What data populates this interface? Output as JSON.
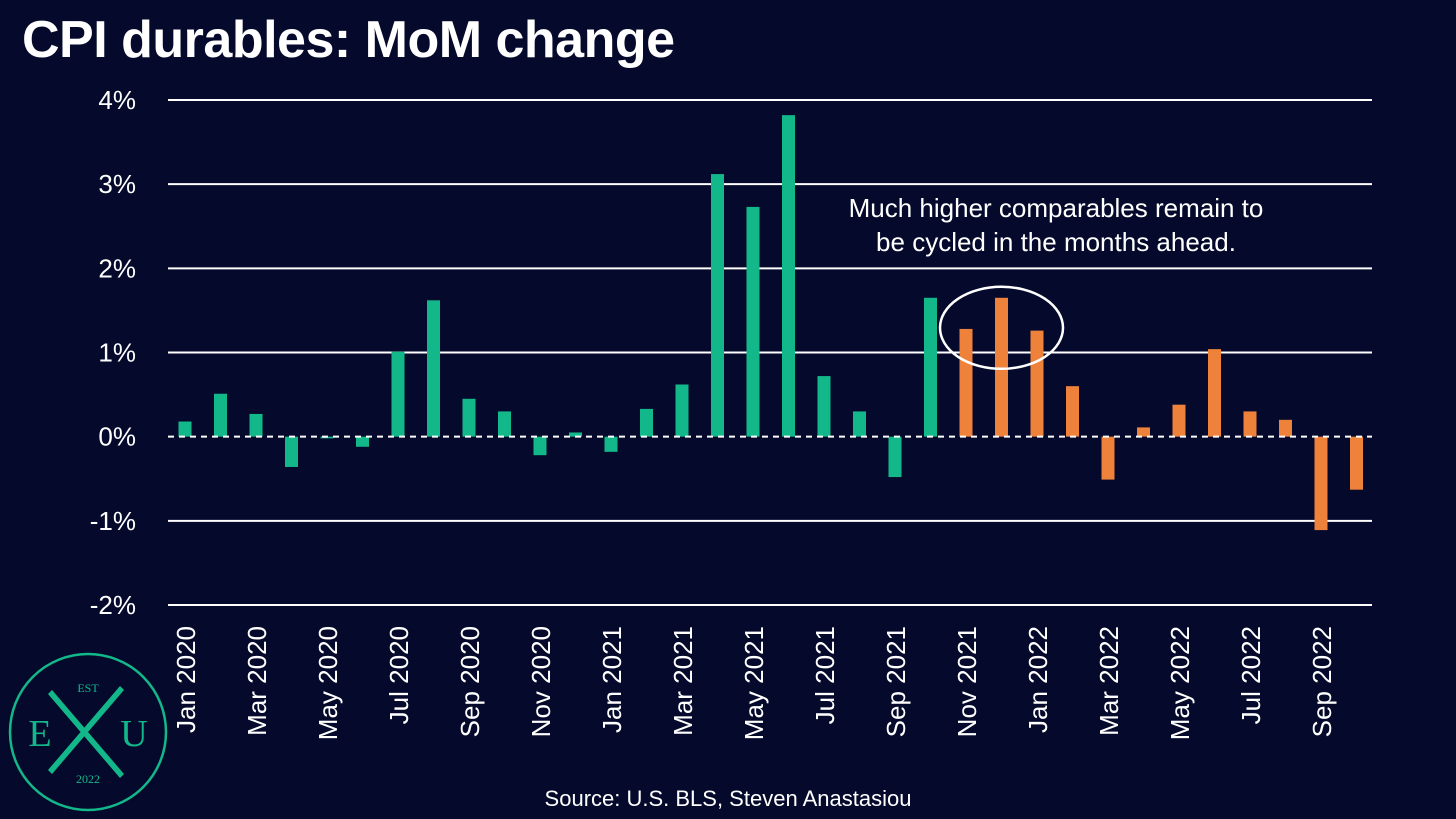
{
  "chart_data": {
    "type": "bar",
    "title": "CPI durables: MoM change",
    "source": "Source: U.S. BLS, Steven Anastasiou",
    "annotation": {
      "lines": [
        "Much higher comparables remain to",
        "be cycled in the months ahead."
      ],
      "circled_categories": [
        "Nov 2021",
        "Dec 2021",
        "Jan 2022"
      ]
    },
    "y_unit": "%",
    "ylim": [
      -2,
      4
    ],
    "y_ticks": [
      {
        "value": 4,
        "label": "4%"
      },
      {
        "value": 3,
        "label": "3%"
      },
      {
        "value": 2,
        "label": "2%"
      },
      {
        "value": 1,
        "label": "1%"
      },
      {
        "value": 0,
        "label": "0%"
      },
      {
        "value": -1,
        "label": "-1%"
      },
      {
        "value": -2,
        "label": "-2%"
      }
    ],
    "grid": true,
    "categories": [
      "Jan 2020",
      "Feb 2020",
      "Mar 2020",
      "Apr 2020",
      "May 2020",
      "Jun 2020",
      "Jul 2020",
      "Aug 2020",
      "Sep 2020",
      "Oct 2020",
      "Nov 2020",
      "Dec 2020",
      "Jan 2021",
      "Feb 2021",
      "Mar 2021",
      "Apr 2021",
      "May 2021",
      "Jun 2021",
      "Jul 2021",
      "Aug 2021",
      "Sep 2021",
      "Oct 2021",
      "Nov 2021",
      "Dec 2021",
      "Jan 2022",
      "Feb 2022",
      "Mar 2022",
      "Apr 2022",
      "May 2022",
      "Jun 2022",
      "Jul 2022",
      "Aug 2022",
      "Sep 2022",
      "Oct 2022"
    ],
    "x_tick_labels": [
      "Jan 2020",
      "Mar 2020",
      "May 2020",
      "Jul 2020",
      "Sep 2020",
      "Nov 2020",
      "Jan 2021",
      "Mar 2021",
      "May 2021",
      "Jul 2021",
      "Sep 2021",
      "Nov 2021",
      "Jan 2022",
      "Mar 2022",
      "May 2022",
      "Jul 2022",
      "Sep 2022"
    ],
    "values": [
      0.18,
      0.51,
      0.27,
      -0.36,
      -0.02,
      -0.12,
      1.01,
      1.62,
      0.45,
      0.3,
      -0.22,
      0.05,
      -0.18,
      0.33,
      0.62,
      3.12,
      2.73,
      3.82,
      0.72,
      0.3,
      -0.48,
      1.65,
      1.28,
      1.65,
      1.26,
      0.6,
      -0.51,
      0.11,
      0.38,
      1.04,
      0.3,
      0.2,
      -1.11,
      -0.63
    ],
    "colors": {
      "background": "#050a2c",
      "primary": "#13b88a",
      "highlight": "#ef823a",
      "grid": "#ffffff",
      "text": "#ffffff"
    },
    "highlight_from_index": 22
  },
  "logo": {
    "top": "EST",
    "left": "E",
    "middle": "X",
    "right": "U",
    "bottom": "2022",
    "color": "#13b88a"
  }
}
